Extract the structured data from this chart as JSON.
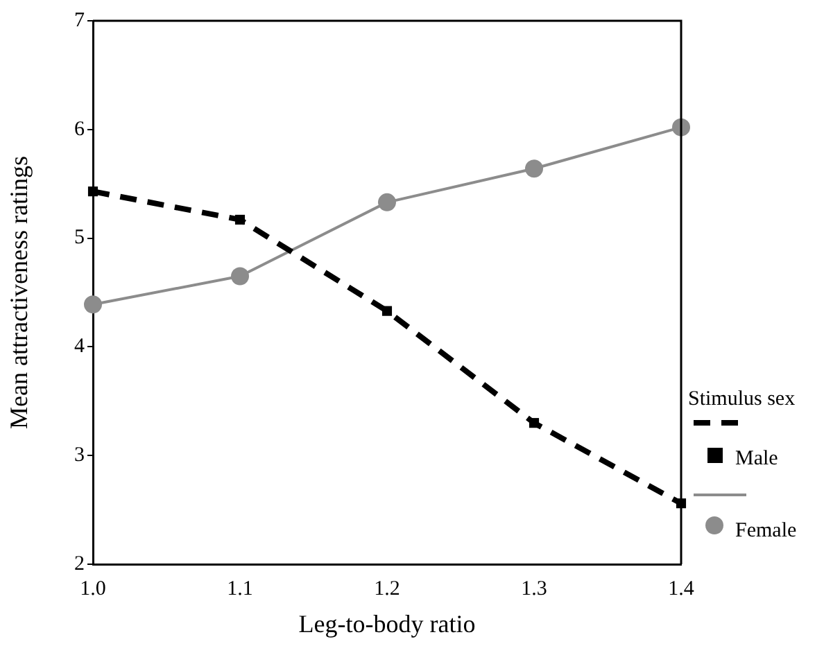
{
  "chart_data": {
    "type": "line",
    "xlabel": "Leg-to-body ratio",
    "ylabel": "Mean attractiveness ratings",
    "legend_title": "Stimulus sex",
    "legend": "right",
    "grid": false,
    "x": [
      1.0,
      1.1,
      1.2,
      1.3,
      1.4
    ],
    "xlim": [
      1.0,
      1.4
    ],
    "xticks": [
      {
        "value": 1.0,
        "label": "1.0"
      },
      {
        "value": 1.1,
        "label": "1.1"
      },
      {
        "value": 1.2,
        "label": "1.2"
      },
      {
        "value": 1.3,
        "label": "1.3"
      },
      {
        "value": 1.4,
        "label": "1.4"
      }
    ],
    "ylim": [
      2,
      7
    ],
    "yticks": [
      2,
      3,
      4,
      5,
      6,
      7
    ],
    "series": [
      {
        "name": "Male",
        "color": "#000000",
        "marker": "square",
        "line_style": "dashed",
        "values": [
          5.43,
          5.17,
          4.33,
          3.3,
          2.56
        ]
      },
      {
        "name": "Female",
        "color": "#8c8c8c",
        "marker": "circle",
        "line_style": "solid",
        "values": [
          4.39,
          4.65,
          5.33,
          5.64,
          6.02
        ]
      }
    ]
  }
}
